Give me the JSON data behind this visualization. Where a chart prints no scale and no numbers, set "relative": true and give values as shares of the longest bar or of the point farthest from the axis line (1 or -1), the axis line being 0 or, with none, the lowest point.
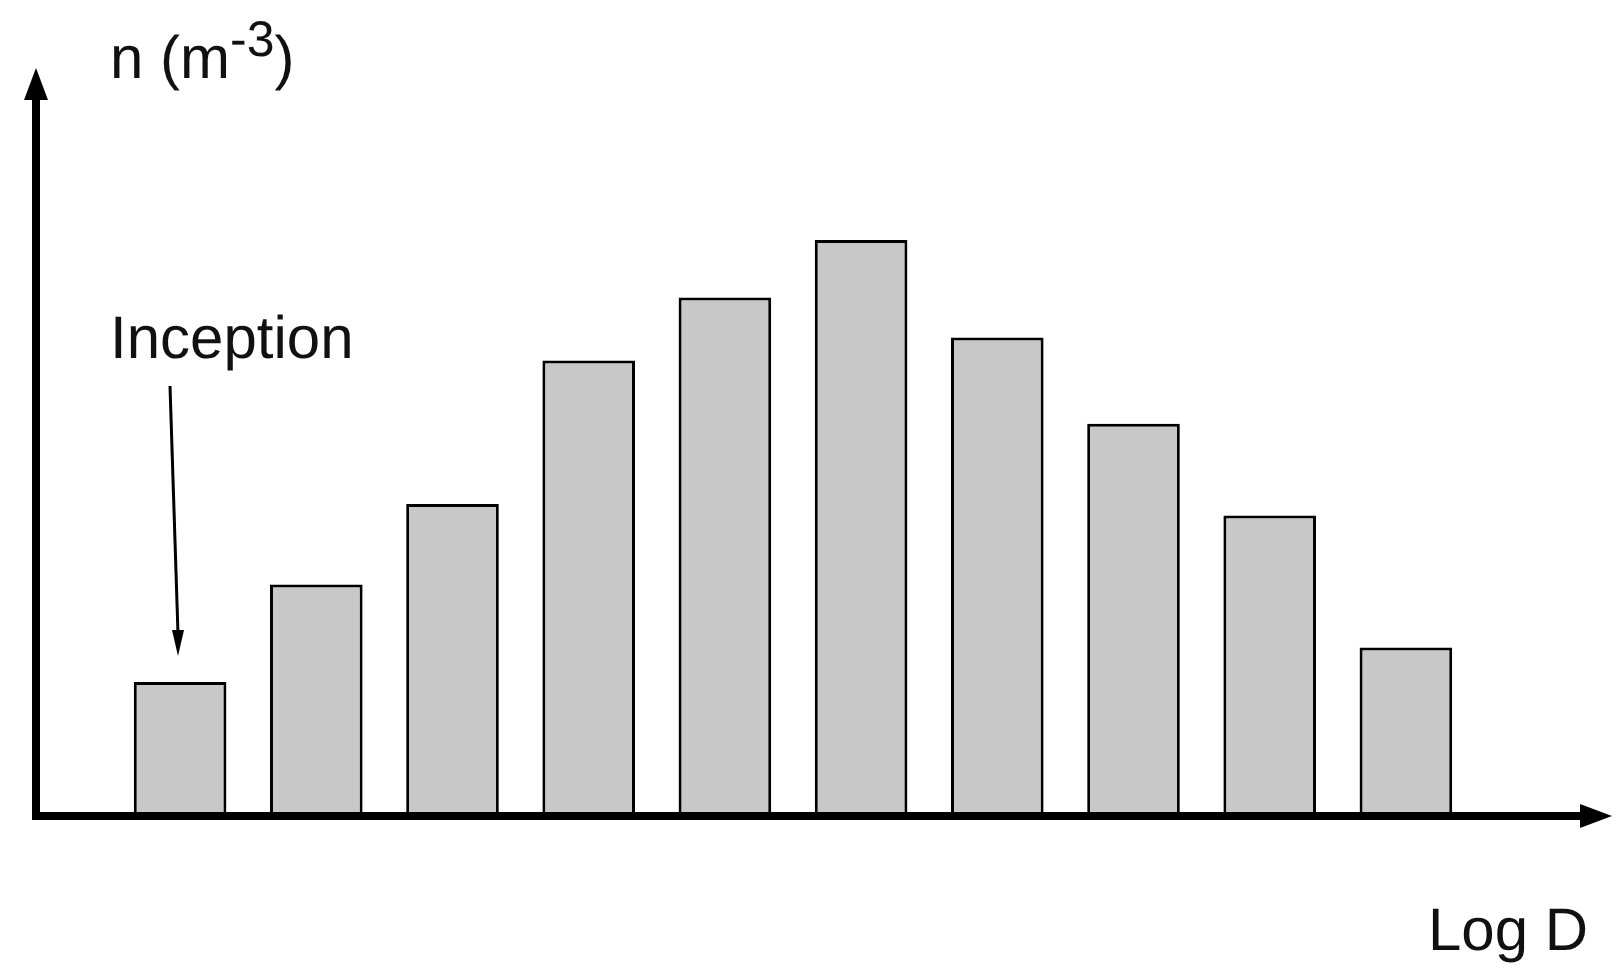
{
  "chart_data": {
    "type": "bar",
    "relative": true,
    "ylabel": "n (m$^{-3}$)",
    "xlabel": "Log D",
    "annotations": [
      "Inception"
    ],
    "categories": [
      null,
      null,
      null,
      null,
      null,
      null,
      null,
      null,
      null,
      null
    ],
    "values": [
      0.23,
      0.4,
      0.54,
      0.79,
      0.9,
      1,
      0.83,
      0.68,
      0.52,
      0.29
    ],
    "color": "#c8c8c8"
  }
}
